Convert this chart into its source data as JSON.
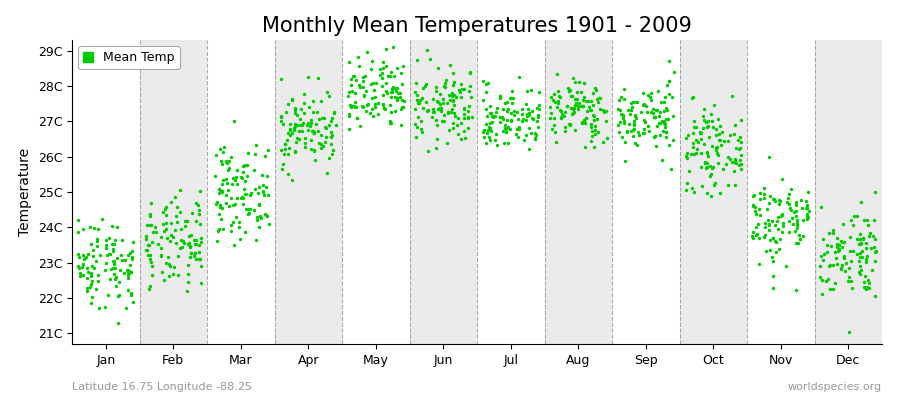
{
  "title": "Monthly Mean Temperatures 1901 - 2009",
  "ylabel": "Temperature",
  "xlabel_bottom_left": "Latitude 16.75 Longitude -88.25",
  "xlabel_bottom_right": "worldspecies.org",
  "y_ticks": [
    21,
    22,
    23,
    24,
    25,
    26,
    27,
    28,
    29
  ],
  "y_tick_labels": [
    "21C",
    "22C",
    "23C",
    "24C",
    "25C",
    "26C",
    "27C",
    "28C",
    "29C"
  ],
  "ylim": [
    20.7,
    29.3
  ],
  "months": [
    "Jan",
    "Feb",
    "Mar",
    "Apr",
    "May",
    "Jun",
    "Jul",
    "Aug",
    "Sep",
    "Oct",
    "Nov",
    "Dec"
  ],
  "month_means": [
    23.0,
    23.5,
    25.0,
    26.8,
    27.7,
    27.4,
    27.1,
    27.3,
    27.1,
    26.2,
    24.2,
    23.3
  ],
  "month_stds": [
    0.65,
    0.65,
    0.65,
    0.55,
    0.55,
    0.55,
    0.45,
    0.45,
    0.5,
    0.55,
    0.65,
    0.65
  ],
  "n_years": 109,
  "dot_color": "#00cc00",
  "dot_size": 6,
  "legend_label": "Mean Temp",
  "background_color": "#ffffff",
  "alt_band_color": "#ebebeb",
  "dashed_line_color": "#888888",
  "title_fontsize": 15,
  "axis_fontsize": 10,
  "tick_fontsize": 9,
  "seed": 42
}
